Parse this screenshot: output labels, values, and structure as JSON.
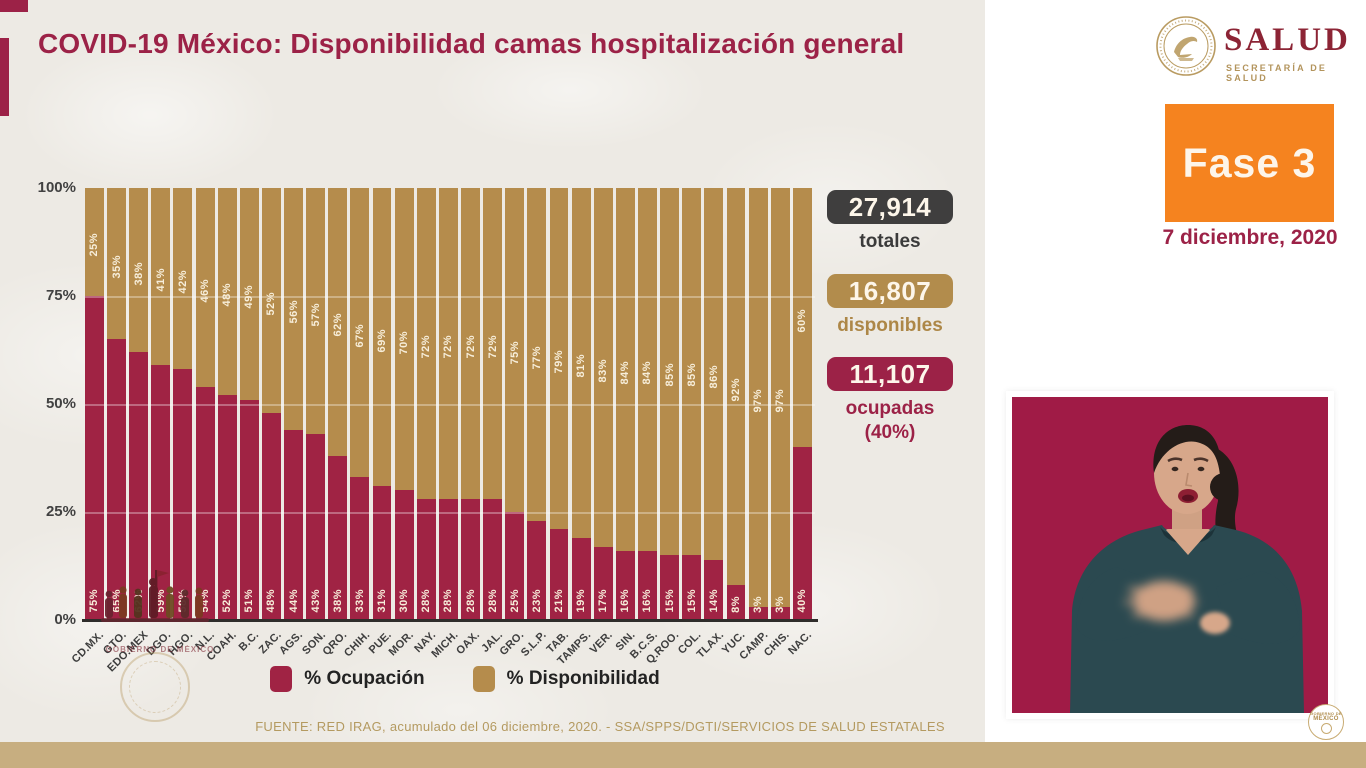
{
  "page": {
    "title": "COVID-19 México: Disponibilidad camas hospitalización general",
    "background_color": "#edeae4",
    "accent_color": "#9c2247"
  },
  "logo": {
    "wordmark": "SALUD",
    "subtitle": "SECRETARÍA DE SALUD"
  },
  "phase": {
    "label": "Fase 3",
    "date": "7 diciembre, 2020",
    "badge_color": "#f5831f"
  },
  "stats": [
    {
      "value": "27,914",
      "label": "totales",
      "box_color": "#3f3e3e",
      "text_color": "#3b3b3b"
    },
    {
      "value": "16,807",
      "label": "disponibles",
      "box_color": "#b28c4c",
      "text_color": "#ad8747"
    },
    {
      "value": "11,107",
      "label": "ocupadas",
      "sublabel": "(40%)",
      "box_color": "#9c2247",
      "text_color": "#9c2247"
    }
  ],
  "chart_data": {
    "type": "bar",
    "stacked": true,
    "title": "Disponibilidad camas hospitalización general por entidad",
    "categories": [
      "CD.MX.",
      "GTO.",
      "EDO.MEX",
      "DGO.",
      "HGO.",
      "N.L.",
      "COAH.",
      "B.C.",
      "ZAC.",
      "AGS.",
      "SON.",
      "QRO.",
      "CHIH.",
      "PUE.",
      "MOR.",
      "NAY.",
      "MICH.",
      "OAX.",
      "JAL.",
      "GRO.",
      "S.L.P.",
      "TAB.",
      "TAMPS.",
      "VER.",
      "SIN.",
      "B.C.S.",
      "Q.ROO.",
      "COL.",
      "TLAX.",
      "YUC.",
      "CAMP.",
      "CHIS.",
      "NAC."
    ],
    "series": [
      {
        "name": "% Ocupación",
        "color": "#a02344",
        "values": [
          75,
          65,
          62,
          59,
          58,
          54,
          52,
          51,
          48,
          44,
          43,
          38,
          33,
          31,
          30,
          28,
          28,
          28,
          28,
          25,
          23,
          21,
          19,
          17,
          16,
          16,
          15,
          15,
          14,
          8,
          3,
          3,
          40
        ]
      },
      {
        "name": "% Disponibilidad",
        "color": "#b58c4c",
        "values": [
          25,
          35,
          38,
          41,
          42,
          46,
          48,
          49,
          52,
          56,
          57,
          62,
          67,
          69,
          70,
          72,
          72,
          72,
          72,
          75,
          77,
          79,
          81,
          83,
          84,
          84,
          85,
          85,
          86,
          92,
          97,
          97,
          60
        ]
      }
    ],
    "y_ticks": [
      "100%",
      "75%",
      "50%",
      "25%",
      "0%"
    ],
    "ylim": [
      0,
      100
    ],
    "grid": "faint horizontal lines at 25/50/75",
    "legend_position": "bottom",
    "bar_label_suffix": "%"
  },
  "footer": {
    "source": "FUENTE: RED IRAG, acumulado del 06 diciembre, 2020. -  SSA/SPPS/DGTI/SERVICIOS DE SALUD ESTATALES"
  },
  "watermark": {
    "gobierno_text": "GOBIERNO DE MÉXICO"
  },
  "seal": {
    "line1": "GOBIERNO DE",
    "line2": "MÉXICO"
  }
}
